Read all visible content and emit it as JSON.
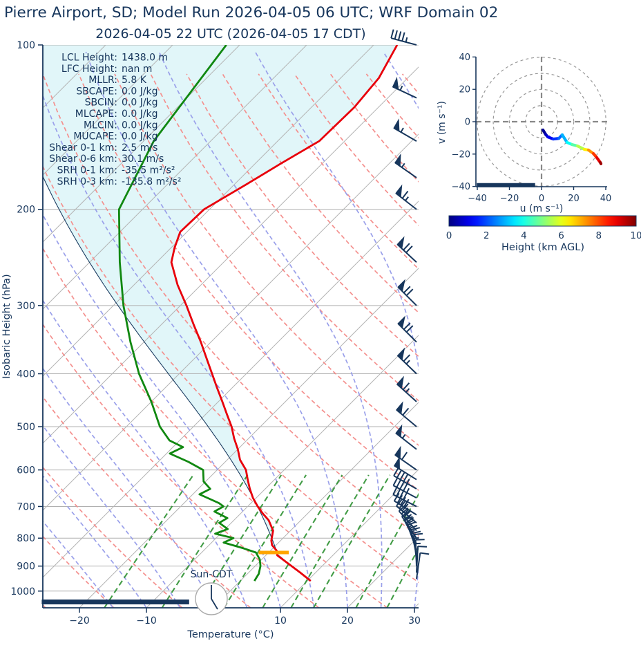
{
  "figure_title": "Pierre Airport, SD; Model Run 2026-04-05 06 UTC; WRF Domain 02",
  "plot_title": "2026-04-05 22 UTC  (2026-04-05 17 CDT)",
  "colors": {
    "navy": "#17365c",
    "temperature": "#e8000b",
    "dewpoint": "#118811",
    "parcel": "#1b3c61",
    "cin_fill": "#e1f6f9",
    "isotherm": "#b5b5b5",
    "isobar": "#b0b0b0",
    "dry_adiabat": "#f4908e",
    "moist_adiabat": "#9aa0ea",
    "mixing_ratio": "#2d9132",
    "lcl_marker": "#ffa500",
    "clock_face": "#ffffff",
    "clock_rim": "#aaaaaa"
  },
  "stats_panel": [
    {
      "label": "LCL Height:",
      "value": "1438.0 m"
    },
    {
      "label": "LFC Height:",
      "value": "nan m"
    },
    {
      "label": "MLLR:",
      "value": "5.8 K"
    },
    {
      "label": "SBCAPE:",
      "value": "0.0 J/kg"
    },
    {
      "label": "SBCIN:",
      "value": "0.0 J/kg"
    },
    {
      "label": "MLCAPE:",
      "value": "0.0 J/kg"
    },
    {
      "label": "MLCIN:",
      "value": "0.0 J/kg"
    },
    {
      "label": "MUCAPE:",
      "value": "0.0 J/kg"
    },
    {
      "label": "Shear 0-1 km:",
      "value": "2.5 m/s"
    },
    {
      "label": "Shear 0-6 km:",
      "value": "30.1 m/s"
    },
    {
      "label": "SRH 0-1 km:",
      "value": "-35.5 m²/s²"
    },
    {
      "label": "SRH 0-3 km:",
      "value": "-135.8 m²/s²"
    }
  ],
  "clock": {
    "label": "Sun-CDT",
    "hour_hand": "5 o'clock",
    "minute_hand": "12"
  },
  "chart_data": {
    "type": "skewt_log_p_sounding",
    "skewt": {
      "xlabel": "Temperature (°C)",
      "ylabel": "Isobaric Height (hPa)",
      "pressure_ticks": [
        100,
        200,
        300,
        400,
        500,
        600,
        700,
        800,
        900,
        1000
      ],
      "temp_ticks": [
        -20,
        -10,
        10,
        20,
        30
      ],
      "pressure_range_hpa": [
        100,
        1073
      ],
      "temp_axis_range_c": [
        -25.5,
        30.6
      ],
      "temperature_profile": {
        "pressure_hpa": [
          100,
          115,
          130,
          150,
          165,
          180,
          200,
          220,
          235,
          250,
          275,
          300,
          325,
          350,
          375,
          400,
          425,
          450,
          475,
          500,
          525,
          550,
          575,
          600,
          625,
          650,
          675,
          700,
          721,
          742,
          775,
          808,
          824,
          843,
          860,
          893,
          925,
          958
        ],
        "temp_c": [
          -56.5,
          -54.3,
          -53.6,
          -53.8,
          -56.2,
          -58.2,
          -60.8,
          -61.0,
          -59.5,
          -57.8,
          -53.5,
          -49.1,
          -45.2,
          -41.5,
          -38.2,
          -35.1,
          -32.2,
          -29.4,
          -26.8,
          -24.3,
          -22.2,
          -20.0,
          -18.1,
          -15.7,
          -14.0,
          -12.3,
          -10.5,
          -8.5,
          -6.7,
          -4.8,
          -2.6,
          -1.4,
          -0.6,
          0.9,
          1.7,
          4.8,
          7.7,
          10.5
        ]
      },
      "dewpoint_profile": {
        "pressure_hpa": [
          100,
          150,
          200,
          250,
          300,
          350,
          400,
          450,
          500,
          530,
          545,
          560,
          580,
          600,
          630,
          650,
          665,
          690,
          700,
          715,
          735,
          750,
          770,
          785,
          800,
          815,
          835,
          850,
          875,
          900,
          930,
          958
        ],
        "dewpoint_c": [
          -82.0,
          -78.5,
          -73.5,
          -65.5,
          -58.5,
          -52.0,
          -46.0,
          -40.0,
          -35.0,
          -31.5,
          -28.5,
          -29.5,
          -25.5,
          -22.1,
          -20.3,
          -18.2,
          -19.0,
          -14.8,
          -13.6,
          -14.2,
          -11.3,
          -11.8,
          -9.6,
          -10.8,
          -7.4,
          -8.2,
          -4.4,
          -1.9,
          -0.3,
          0.8,
          1.7,
          2.1
        ]
      },
      "parcel": {
        "surface_pressure_hpa": 958,
        "surface_temp_c": 10.5,
        "lcl_pressure_hpa": 850
      },
      "lcl_marker": {
        "pressure_hpa": 850,
        "temp_from_c": -1.5,
        "temp_to_c": 3.0
      },
      "ground_bar": {
        "pressure_hpa": 1047,
        "temp_from_c": -26.5,
        "temp_to_c": -4.5
      },
      "wind_barbs": [
        {
          "p": 100,
          "kt": 45,
          "dir": 285
        },
        {
          "p": 125,
          "kt": 55,
          "dir": 295
        },
        {
          "p": 150,
          "kt": 55,
          "dir": 300
        },
        {
          "p": 175,
          "kt": 58,
          "dir": 305
        },
        {
          "p": 200,
          "kt": 65,
          "dir": 308
        },
        {
          "p": 250,
          "kt": 72,
          "dir": 313
        },
        {
          "p": 300,
          "kt": 72,
          "dir": 315
        },
        {
          "p": 350,
          "kt": 70,
          "dir": 315
        },
        {
          "p": 400,
          "kt": 65,
          "dir": 314
        },
        {
          "p": 450,
          "kt": 65,
          "dir": 312
        },
        {
          "p": 500,
          "kt": 60,
          "dir": 310
        },
        {
          "p": 550,
          "kt": 58,
          "dir": 308
        },
        {
          "p": 600,
          "kt": 60,
          "dir": 305
        },
        {
          "p": 625,
          "kt": 50,
          "dir": 302
        },
        {
          "p": 650,
          "kt": 45,
          "dir": 300
        },
        {
          "p": 675,
          "kt": 45,
          "dir": 298
        },
        {
          "p": 700,
          "kt": 42,
          "dir": 297
        },
        {
          "p": 725,
          "kt": 40,
          "dir": 302
        },
        {
          "p": 750,
          "kt": 38,
          "dir": 310
        },
        {
          "p": 775,
          "kt": 35,
          "dir": 318
        },
        {
          "p": 800,
          "kt": 30,
          "dir": 326
        },
        {
          "p": 820,
          "kt": 28,
          "dir": 333
        },
        {
          "p": 840,
          "kt": 25,
          "dir": 340
        },
        {
          "p": 860,
          "kt": 22,
          "dir": 348
        },
        {
          "p": 880,
          "kt": 18,
          "dir": 354
        },
        {
          "p": 900,
          "kt": 15,
          "dir": 358
        },
        {
          "p": 925,
          "kt": 12,
          "dir": 3
        },
        {
          "p": 950,
          "kt": 10,
          "dir": 8
        }
      ],
      "background": {
        "isotherm_c": {
          "from": -110,
          "to": 40,
          "step": 10
        },
        "dry_adiabat_theta_c": {
          "from": -30,
          "to": 200,
          "step": 10
        },
        "moist_adiabat_t0_c": {
          "from": -15,
          "to": 40,
          "step": 5
        },
        "mixing_ratio_g_kg": [
          1,
          2,
          3,
          4,
          6,
          8,
          10,
          15,
          20,
          30
        ],
        "mixing_ratio_top_hpa": 600
      }
    },
    "hodograph": {
      "xlabel": "u (m s⁻¹)",
      "ylabel": "v (m s⁻¹)",
      "u_ticks": [
        -40,
        -20,
        0,
        20,
        40
      ],
      "v_ticks": [
        -40,
        -20,
        0,
        20,
        40
      ],
      "ring_radii": [
        10,
        20,
        30,
        40
      ],
      "trace": {
        "u": [
          0.9,
          2.6,
          3.9,
          7.3,
          10.8,
          12.9,
          15.9,
          18.9,
          22.4,
          26.7,
          29.2,
          32.3,
          34.4,
          36.6,
          37.0
        ],
        "v": [
          -5.1,
          -7.9,
          -9.4,
          -10.7,
          -10.3,
          -8.1,
          -12.8,
          -14.1,
          -15.0,
          -17.1,
          -17.5,
          -19.7,
          -22.2,
          -25.2,
          -26.0
        ],
        "h_km": [
          0,
          0.4,
          0.8,
          1.4,
          2.0,
          2.6,
          3.4,
          4.2,
          5.0,
          6.0,
          6.8,
          7.8,
          8.6,
          9.4,
          10.0
        ]
      },
      "ground_bar": {
        "v": -39.2,
        "u_from": -40.3,
        "u_to": -4.0
      }
    },
    "colorbar": {
      "label": "Height (km AGL)",
      "ticks": [
        0,
        2,
        4,
        6,
        8,
        10
      ],
      "range_km": [
        0,
        10
      ],
      "colormap": "jet"
    }
  }
}
